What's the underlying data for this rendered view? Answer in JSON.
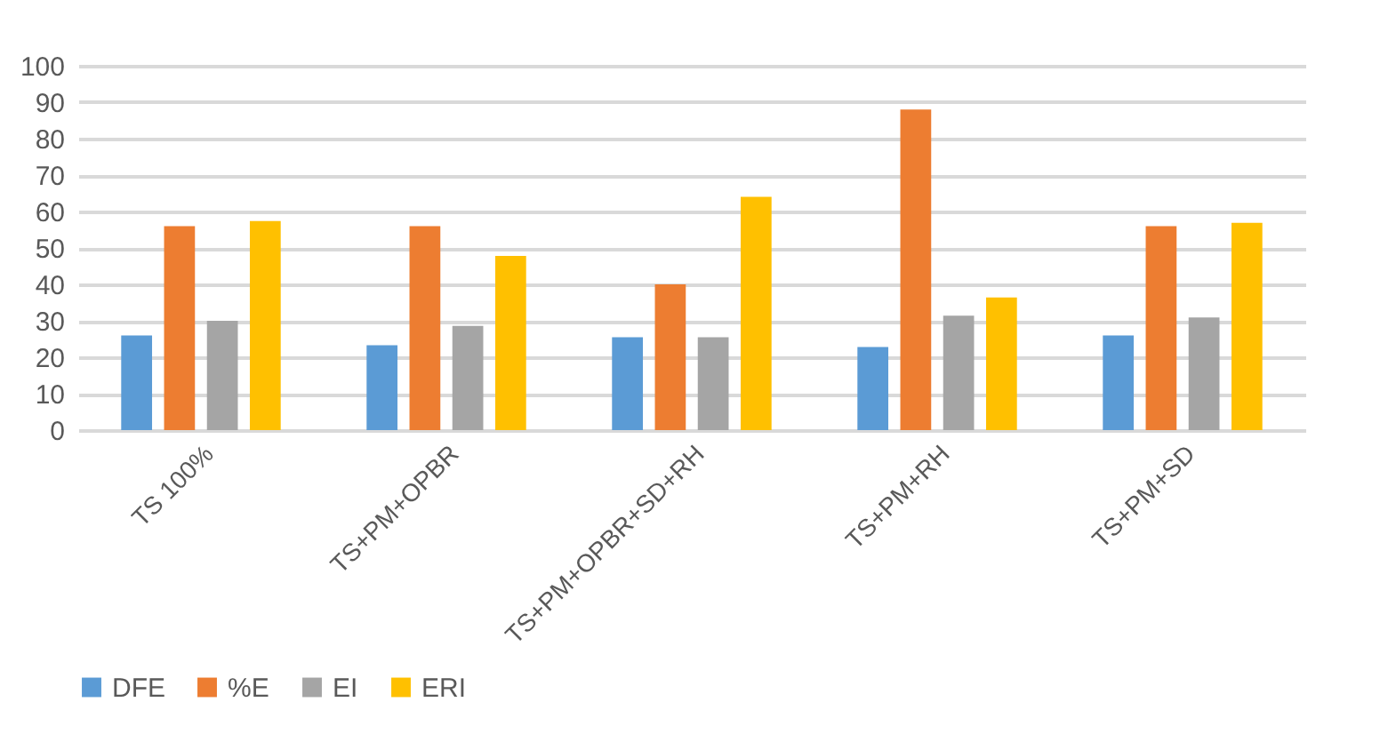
{
  "chart_data": {
    "type": "bar",
    "categories": [
      "TS 100%",
      "TS+PM+OPBR",
      "TS+PM+OPBR+SD+RH",
      "TS+PM+RH",
      "TS+PM+SD"
    ],
    "series": [
      {
        "name": "DFE",
        "color": "#5b9bd5",
        "values": [
          26,
          23.3,
          25.5,
          22.8,
          26
        ]
      },
      {
        "name": "%E",
        "color": "#ed7d31",
        "values": [
          56,
          56,
          40,
          88,
          56
        ]
      },
      {
        "name": "EI",
        "color": "#a5a5a5",
        "values": [
          30,
          28.6,
          25.5,
          31.4,
          30.9
        ]
      },
      {
        "name": "ERI",
        "color": "#ffc000",
        "values": [
          57.4,
          47.8,
          64,
          36.4,
          56.9
        ]
      }
    ],
    "ylim": [
      0,
      100
    ],
    "yticks": [
      0,
      10,
      20,
      30,
      40,
      50,
      60,
      70,
      80,
      90,
      100
    ],
    "grid": "y",
    "legend": "bottom"
  }
}
